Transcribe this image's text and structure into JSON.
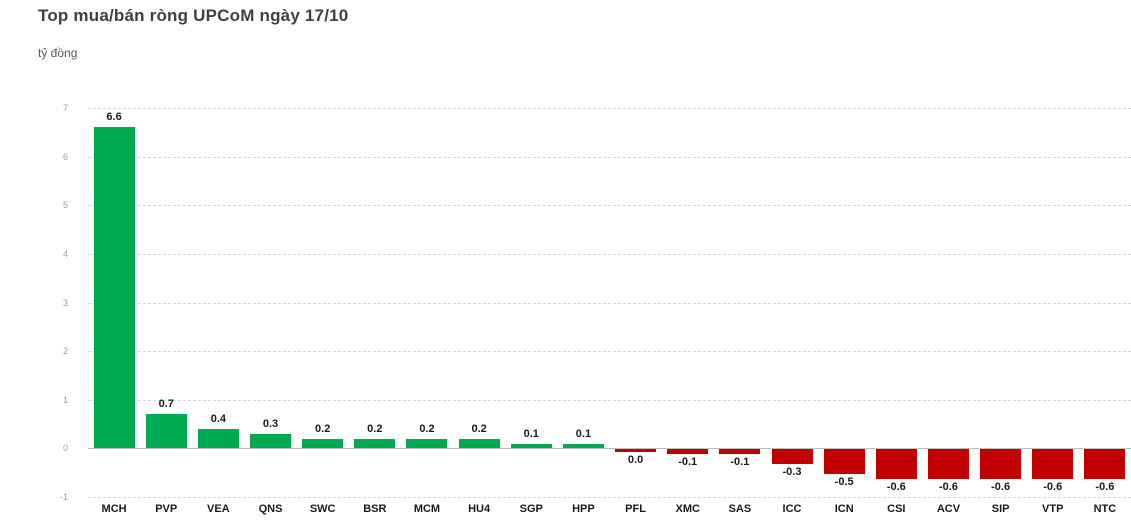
{
  "header": {
    "title": "Top mua/bán ròng UPCoM ngày 17/10",
    "subtitle": "tỷ đồng"
  },
  "chart_data": {
    "type": "bar",
    "title": "Top mua/bán ròng UPCoM ngày 17/10",
    "unit_label": "tỷ đồng",
    "categories": [
      "MCH",
      "PVP",
      "VEA",
      "QNS",
      "SWC",
      "BSR",
      "MCM",
      "HU4",
      "SGP",
      "HPP",
      "PFL",
      "XMC",
      "SAS",
      "ICC",
      "ICN",
      "CSI",
      "ACV",
      "SIP",
      "VTP",
      "NTC"
    ],
    "values": [
      6.6,
      0.7,
      0.4,
      0.3,
      0.2,
      0.2,
      0.2,
      0.2,
      0.1,
      0.1,
      0.0,
      -0.1,
      -0.1,
      -0.3,
      -0.5,
      -0.6,
      -0.6,
      -0.6,
      -0.6,
      -0.6
    ],
    "value_labels": [
      "6.6",
      "0.7",
      "0.4",
      "0.3",
      "0.2",
      "0.2",
      "0.2",
      "0.2",
      "0.1",
      "0.1",
      "0.0",
      "-0.1",
      "-0.1",
      "-0.3",
      "-0.5",
      "-0.6",
      "-0.6",
      "-0.6",
      "-0.6",
      "-0.6"
    ],
    "xlabel": "",
    "ylabel": "tỷ đồng",
    "ylim": [
      -1,
      7
    ],
    "yticks": [
      7,
      6,
      5,
      4,
      3,
      2,
      1,
      0,
      -1
    ],
    "grid": "dashed-horizontal",
    "legend_position": "none",
    "colors": {
      "positive": "#00AA50",
      "negative": "#C00000",
      "gridline": "#d6d6d6",
      "zero_line": "#bfbfbf",
      "title": "#404040",
      "subtitle": "#595959",
      "axis_labels": "#9b9b9b",
      "data_labels": "#1a1a1a"
    }
  }
}
